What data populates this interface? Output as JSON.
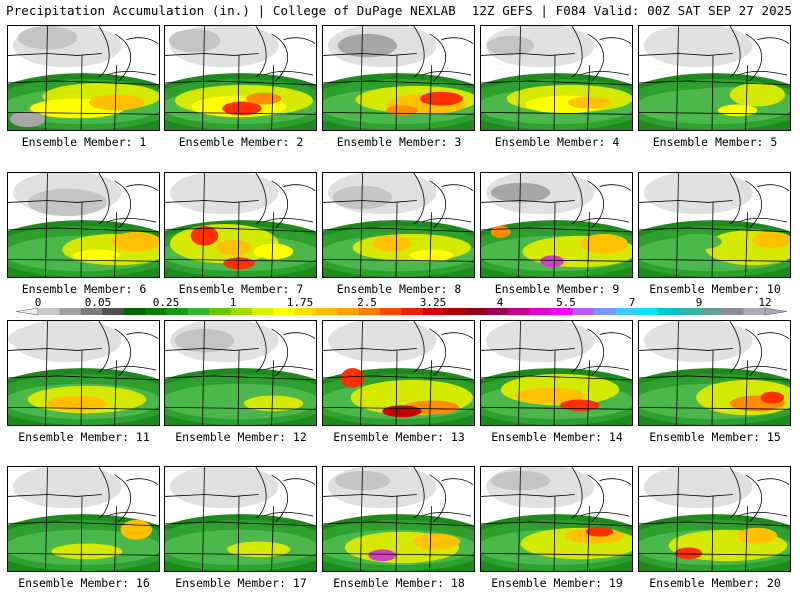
{
  "header": {
    "left_title": "Precipitation Accumulation (in.) | College of DuPage NEXLAB",
    "right_title": "12Z GEFS | F084 Valid: 00Z SAT SEP 27 2025"
  },
  "legend": {
    "tick_labels": [
      "0",
      "0.05",
      "0.25",
      "1",
      "1.75",
      "2.5",
      "3.25",
      "4",
      "5.5",
      "7",
      "9",
      "12"
    ],
    "colors": [
      "#c8c8c8",
      "#a0a0a0",
      "#7a7a7a",
      "#505050",
      "#006400",
      "#0d7a0d",
      "#1a961a",
      "#32b432",
      "#64c800",
      "#9bdc00",
      "#d7f000",
      "#ffff00",
      "#ffdc00",
      "#ffbe00",
      "#ffa000",
      "#ff7800",
      "#ff4600",
      "#f01e00",
      "#d20000",
      "#b40000",
      "#960014",
      "#a00050",
      "#c8008c",
      "#e600c8",
      "#ff00ff",
      "#b45aff",
      "#7896ff",
      "#3cc8ff",
      "#00e6f0",
      "#00c8c8",
      "#32b4aa",
      "#64a096",
      "#8c8ca0",
      "#aaaabe"
    ]
  },
  "panels": [
    {
      "label": "Ensemble Member: 1"
    },
    {
      "label": "Ensemble Member: 2"
    },
    {
      "label": "Ensemble Member: 3"
    },
    {
      "label": "Ensemble Member: 4"
    },
    {
      "label": "Ensemble Member: 5"
    },
    {
      "label": "Ensemble Member: 6"
    },
    {
      "label": "Ensemble Member: 7"
    },
    {
      "label": "Ensemble Member: 8"
    },
    {
      "label": "Ensemble Member: 9"
    },
    {
      "label": "Ensemble Member: 10"
    },
    {
      "label": "Ensemble Member: 11"
    },
    {
      "label": "Ensemble Member: 12"
    },
    {
      "label": "Ensemble Member: 13"
    },
    {
      "label": "Ensemble Member: 14"
    },
    {
      "label": "Ensemble Member: 15"
    },
    {
      "label": "Ensemble Member: 16"
    },
    {
      "label": "Ensemble Member: 17"
    },
    {
      "label": "Ensemble Member: 18"
    },
    {
      "label": "Ensemble Member: 19"
    },
    {
      "label": "Ensemble Member: 20"
    }
  ]
}
